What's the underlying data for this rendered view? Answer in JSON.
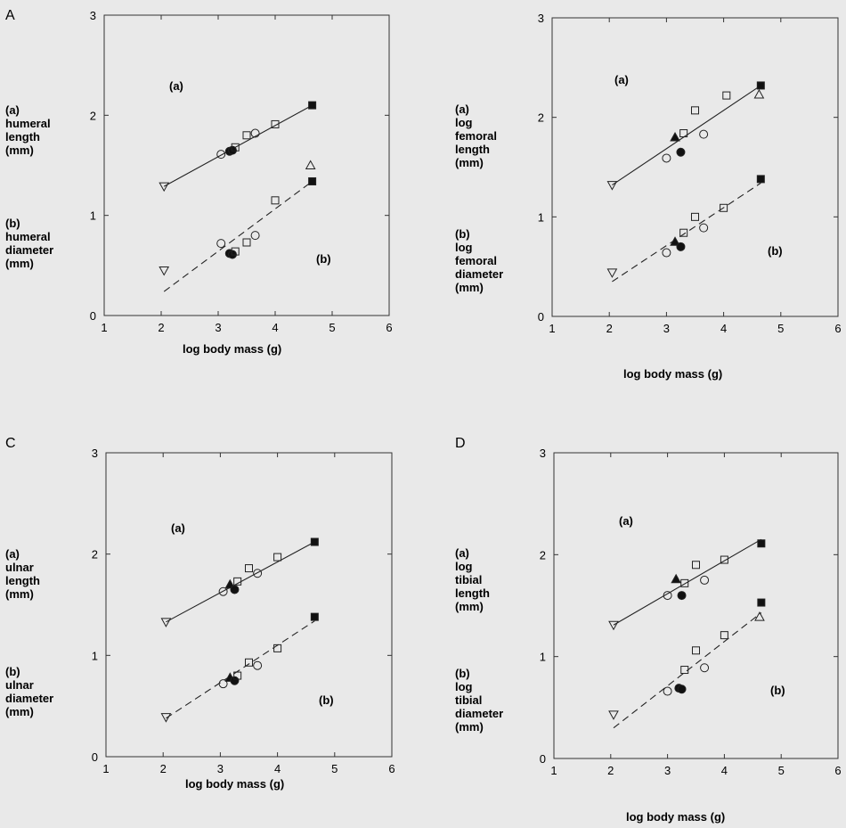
{
  "chart_data": [
    {
      "type": "scatter",
      "panel_label": "A",
      "xlabel": "log body mass (g)",
      "ylabel_a": [
        "(a)",
        "humeral",
        "length",
        "(mm)"
      ],
      "ylabel_b": [
        "(b)",
        "humeral",
        "diameter",
        "(mm)"
      ],
      "annotation_a": "(a)",
      "annotation_b": "(b)",
      "xlim": [
        1,
        6
      ],
      "ylim": [
        0,
        3
      ],
      "xticks": [
        1,
        2,
        3,
        4,
        5,
        6
      ],
      "yticks": [
        0,
        1,
        2,
        3
      ],
      "series": [
        {
          "group": "a",
          "points": [
            {
              "x": 2.05,
              "y": 1.29,
              "marker": "triangle-down-open"
            },
            {
              "x": 3.05,
              "y": 1.61,
              "marker": "circle-open"
            },
            {
              "x": 3.2,
              "y": 1.64,
              "marker": "circle-filled"
            },
            {
              "x": 3.25,
              "y": 1.65,
              "marker": "circle-filled"
            },
            {
              "x": 3.3,
              "y": 1.68,
              "marker": "square-open"
            },
            {
              "x": 3.5,
              "y": 1.8,
              "marker": "square-open"
            },
            {
              "x": 3.65,
              "y": 1.82,
              "marker": "circle-open"
            },
            {
              "x": 4.0,
              "y": 1.91,
              "marker": "square-open"
            },
            {
              "x": 4.65,
              "y": 2.1,
              "marker": "square-filled"
            }
          ],
          "fit": {
            "x": [
              2.05,
              4.65
            ],
            "y": [
              1.29,
              2.1
            ],
            "style": "solid"
          }
        },
        {
          "group": "b",
          "points": [
            {
              "x": 2.05,
              "y": 0.45,
              "marker": "triangle-down-open"
            },
            {
              "x": 3.05,
              "y": 0.72,
              "marker": "circle-open"
            },
            {
              "x": 3.2,
              "y": 0.62,
              "marker": "circle-filled"
            },
            {
              "x": 3.25,
              "y": 0.61,
              "marker": "circle-filled"
            },
            {
              "x": 3.3,
              "y": 0.64,
              "marker": "square-open"
            },
            {
              "x": 3.5,
              "y": 0.73,
              "marker": "square-open"
            },
            {
              "x": 3.65,
              "y": 0.8,
              "marker": "circle-open"
            },
            {
              "x": 4.0,
              "y": 1.15,
              "marker": "square-open"
            },
            {
              "x": 4.65,
              "y": 1.34,
              "marker": "square-filled"
            },
            {
              "x": 4.62,
              "y": 1.5,
              "marker": "triangle-up-open"
            }
          ],
          "fit": {
            "x": [
              2.05,
              4.65
            ],
            "y": [
              0.24,
              1.34
            ],
            "style": "dashed"
          }
        }
      ]
    },
    {
      "type": "scatter",
      "panel_label": "",
      "xlabel": "log body mass (g)",
      "ylabel_a": [
        "(a)",
        "log",
        "femoral",
        "length",
        "(mm)"
      ],
      "ylabel_b": [
        "(b)",
        "log",
        "femoral",
        "diameter",
        "(mm)"
      ],
      "annotation_a": "(a)",
      "annotation_b": "(b)",
      "xlim": [
        1,
        6
      ],
      "ylim": [
        0,
        3
      ],
      "xticks": [
        1,
        2,
        3,
        4,
        5,
        6
      ],
      "yticks": [
        0,
        1,
        2,
        3
      ],
      "series": [
        {
          "group": "a",
          "points": [
            {
              "x": 2.05,
              "y": 1.32,
              "marker": "triangle-down-open"
            },
            {
              "x": 3.0,
              "y": 1.59,
              "marker": "circle-open"
            },
            {
              "x": 3.15,
              "y": 1.8,
              "marker": "triangle-up-filled"
            },
            {
              "x": 3.25,
              "y": 1.65,
              "marker": "circle-filled"
            },
            {
              "x": 3.3,
              "y": 1.84,
              "marker": "square-open"
            },
            {
              "x": 3.5,
              "y": 2.07,
              "marker": "square-open"
            },
            {
              "x": 3.65,
              "y": 1.83,
              "marker": "circle-open"
            },
            {
              "x": 4.05,
              "y": 2.22,
              "marker": "square-open"
            },
            {
              "x": 4.62,
              "y": 2.23,
              "marker": "triangle-up-open"
            },
            {
              "x": 4.65,
              "y": 2.32,
              "marker": "square-filled"
            }
          ],
          "fit": {
            "x": [
              2.05,
              4.65
            ],
            "y": [
              1.32,
              2.32
            ],
            "style": "solid"
          }
        },
        {
          "group": "b",
          "points": [
            {
              "x": 2.05,
              "y": 0.44,
              "marker": "triangle-down-open"
            },
            {
              "x": 3.0,
              "y": 0.64,
              "marker": "circle-open"
            },
            {
              "x": 3.15,
              "y": 0.75,
              "marker": "triangle-up-filled"
            },
            {
              "x": 3.25,
              "y": 0.7,
              "marker": "circle-filled"
            },
            {
              "x": 3.3,
              "y": 0.84,
              "marker": "square-open"
            },
            {
              "x": 3.5,
              "y": 1.0,
              "marker": "square-open"
            },
            {
              "x": 3.65,
              "y": 0.89,
              "marker": "circle-open"
            },
            {
              "x": 4.0,
              "y": 1.09,
              "marker": "square-open"
            },
            {
              "x": 4.65,
              "y": 1.38,
              "marker": "square-filled"
            }
          ],
          "fit": {
            "x": [
              2.05,
              4.65
            ],
            "y": [
              0.35,
              1.34
            ],
            "style": "dashed"
          }
        }
      ]
    },
    {
      "type": "scatter",
      "panel_label": "C",
      "xlabel": "log body mass (g)",
      "ylabel_a": [
        "(a)",
        "ulnar",
        "length",
        "(mm)"
      ],
      "ylabel_b": [
        "(b)",
        "ulnar",
        "diameter",
        "(mm)"
      ],
      "annotation_a": "(a)",
      "annotation_b": "(b)",
      "xlim": [
        1,
        6
      ],
      "ylim": [
        0,
        3
      ],
      "xticks": [
        1,
        2,
        3,
        4,
        5,
        6
      ],
      "yticks": [
        0,
        1,
        2,
        3
      ],
      "series": [
        {
          "group": "a",
          "points": [
            {
              "x": 2.05,
              "y": 1.33,
              "marker": "triangle-down-open"
            },
            {
              "x": 3.05,
              "y": 1.63,
              "marker": "circle-open"
            },
            {
              "x": 3.17,
              "y": 1.7,
              "marker": "triangle-up-filled"
            },
            {
              "x": 3.25,
              "y": 1.65,
              "marker": "circle-filled"
            },
            {
              "x": 3.3,
              "y": 1.73,
              "marker": "square-open"
            },
            {
              "x": 3.5,
              "y": 1.86,
              "marker": "square-open"
            },
            {
              "x": 3.65,
              "y": 1.81,
              "marker": "circle-open"
            },
            {
              "x": 4.0,
              "y": 1.97,
              "marker": "square-open"
            },
            {
              "x": 4.65,
              "y": 2.12,
              "marker": "square-filled"
            }
          ],
          "fit": {
            "x": [
              2.05,
              4.65
            ],
            "y": [
              1.33,
              2.12
            ],
            "style": "solid"
          }
        },
        {
          "group": "b",
          "points": [
            {
              "x": 2.05,
              "y": 0.39,
              "marker": "triangle-down-open"
            },
            {
              "x": 3.05,
              "y": 0.72,
              "marker": "circle-open"
            },
            {
              "x": 3.17,
              "y": 0.78,
              "marker": "triangle-up-filled"
            },
            {
              "x": 3.25,
              "y": 0.75,
              "marker": "circle-filled"
            },
            {
              "x": 3.3,
              "y": 0.8,
              "marker": "square-open"
            },
            {
              "x": 3.5,
              "y": 0.93,
              "marker": "square-open"
            },
            {
              "x": 3.65,
              "y": 0.9,
              "marker": "circle-open"
            },
            {
              "x": 4.0,
              "y": 1.07,
              "marker": "square-open"
            },
            {
              "x": 4.65,
              "y": 1.38,
              "marker": "square-filled"
            }
          ],
          "fit": {
            "x": [
              2.05,
              4.65
            ],
            "y": [
              0.38,
              1.34
            ],
            "style": "dashed"
          }
        }
      ]
    },
    {
      "type": "scatter",
      "panel_label": "D",
      "xlabel": "log body mass (g)",
      "ylabel_a": [
        "(a)",
        "log",
        "tibial",
        "length",
        "(mm)"
      ],
      "ylabel_b": [
        "(b)",
        "log",
        "tibial",
        "diameter",
        "(mm)"
      ],
      "annotation_a": "(a)",
      "annotation_b": "(b)",
      "xlim": [
        1,
        6
      ],
      "ylim": [
        0,
        3
      ],
      "xticks": [
        1,
        2,
        3,
        4,
        5,
        6
      ],
      "yticks": [
        0,
        1,
        2,
        3
      ],
      "series": [
        {
          "group": "a",
          "points": [
            {
              "x": 2.05,
              "y": 1.31,
              "marker": "triangle-down-open"
            },
            {
              "x": 3.0,
              "y": 1.6,
              "marker": "circle-open"
            },
            {
              "x": 3.15,
              "y": 1.76,
              "marker": "triangle-up-filled"
            },
            {
              "x": 3.25,
              "y": 1.6,
              "marker": "circle-filled"
            },
            {
              "x": 3.3,
              "y": 1.72,
              "marker": "square-open"
            },
            {
              "x": 3.5,
              "y": 1.9,
              "marker": "square-open"
            },
            {
              "x": 3.65,
              "y": 1.75,
              "marker": "circle-open"
            },
            {
              "x": 4.0,
              "y": 1.95,
              "marker": "square-open"
            },
            {
              "x": 4.65,
              "y": 2.11,
              "marker": "square-filled"
            }
          ],
          "fit": {
            "x": [
              2.05,
              4.65
            ],
            "y": [
              1.31,
              2.15
            ],
            "style": "solid"
          }
        },
        {
          "group": "b",
          "points": [
            {
              "x": 2.05,
              "y": 0.43,
              "marker": "triangle-down-open"
            },
            {
              "x": 3.0,
              "y": 0.66,
              "marker": "circle-open"
            },
            {
              "x": 3.2,
              "y": 0.69,
              "marker": "circle-filled"
            },
            {
              "x": 3.25,
              "y": 0.68,
              "marker": "circle-filled"
            },
            {
              "x": 3.3,
              "y": 0.87,
              "marker": "square-open"
            },
            {
              "x": 3.5,
              "y": 1.06,
              "marker": "square-open"
            },
            {
              "x": 3.65,
              "y": 0.89,
              "marker": "circle-open"
            },
            {
              "x": 4.0,
              "y": 1.21,
              "marker": "square-open"
            },
            {
              "x": 4.62,
              "y": 1.39,
              "marker": "triangle-up-open"
            },
            {
              "x": 4.65,
              "y": 1.53,
              "marker": "square-filled"
            }
          ],
          "fit": {
            "x": [
              2.05,
              4.65
            ],
            "y": [
              0.3,
              1.43
            ],
            "style": "dashed"
          }
        }
      ]
    }
  ]
}
